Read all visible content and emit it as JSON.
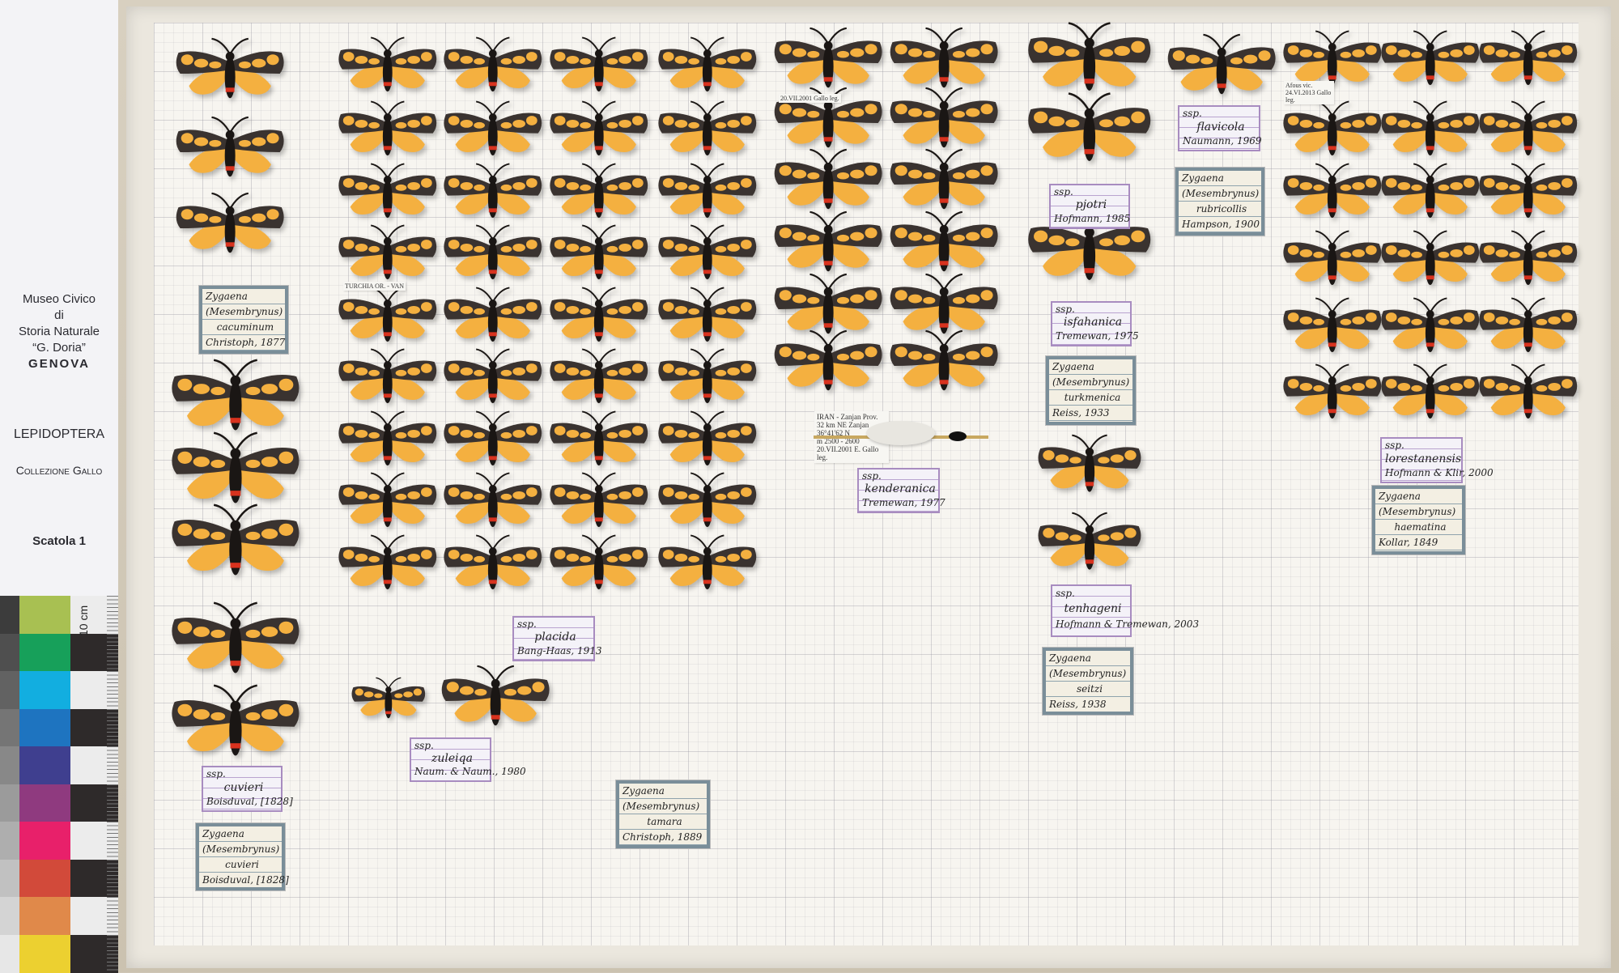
{
  "museum_card": {
    "line1": "Museo Civico",
    "line2": "di",
    "line3": "Storia Naturale",
    "line4": "“G. Doria”",
    "line5": "GENOVA",
    "order": "LEPIDOPTERA",
    "collection": "Collezione Gallo",
    "box": "Scatola 1"
  },
  "scale_bar": {
    "label": "10 cm",
    "color_patches": [
      "#a8c052",
      "#17a05a",
      "#12aee0",
      "#1e74c0",
      "#3f3f8f",
      "#8f3a7f",
      "#e8206a",
      "#d24a3a",
      "#e0894a",
      "#ecd030"
    ]
  },
  "colors": {
    "forewing": "#3a3330",
    "spot": "#f0704a",
    "hindwing": "#f2907c",
    "body": "#1a1614",
    "yellow_spot": "#f4b040",
    "paper": "#f7f5f0"
  },
  "labels": [
    {
      "type": "genus",
      "lines": [
        "Zygaena",
        "(Mesembrynus)",
        "cacuminum",
        "Christoph, 1877"
      ]
    },
    {
      "type": "ssp",
      "lines": [
        "ssp.",
        "cuvieri",
        "Boisduval, [1828]"
      ]
    },
    {
      "type": "genus",
      "lines": [
        "Zygaena",
        "(Mesembrynus)",
        "cuvieri",
        "Boisduval, [1828]"
      ]
    },
    {
      "type": "ssp",
      "lines": [
        "ssp.",
        "placida",
        "Bang-Haas, 1913"
      ]
    },
    {
      "type": "ssp",
      "lines": [
        "ssp.",
        "zuleiqa",
        "Naum. & Naum., 1980"
      ]
    },
    {
      "type": "genus",
      "lines": [
        "Zygaena",
        "(Mesembrynus)",
        "tamara",
        "Christoph, 1889"
      ]
    },
    {
      "type": "ssp",
      "lines": [
        "ssp.",
        "kenderanica",
        "Tremewan, 1977"
      ]
    },
    {
      "type": "ssp",
      "lines": [
        "ssp.",
        "flavicola",
        "Naumann, 1969"
      ]
    },
    {
      "type": "genus",
      "lines": [
        "Zygaena",
        "(Mesembrynus)",
        "rubricollis",
        "Hampson, 1900"
      ]
    },
    {
      "type": "ssp",
      "lines": [
        "ssp.",
        "pjotri",
        "Hofmann, 1985"
      ]
    },
    {
      "type": "ssp",
      "lines": [
        "ssp.",
        "isfahanica",
        "Tremewan, 1975"
      ]
    },
    {
      "type": "genus",
      "lines": [
        "Zygaena",
        "(Mesembrynus)",
        "turkmenica",
        "Reiss, 1933"
      ]
    },
    {
      "type": "ssp",
      "lines": [
        "ssp.",
        "tenhageni",
        "Hofmann & Tremewan, 2003"
      ]
    },
    {
      "type": "genus",
      "lines": [
        "Zygaena",
        "(Mesembrynus)",
        "seitzi",
        "Reiss, 1938"
      ]
    },
    {
      "type": "ssp",
      "lines": [
        "ssp.",
        "lorestanensis",
        "Hofmann & Klir, 2000"
      ]
    },
    {
      "type": "genus",
      "lines": [
        "Zygaena",
        "(Mesembrynus)",
        "haematina",
        "Kollar, 1849"
      ]
    }
  ],
  "data_label": {
    "lines": [
      "IRAN - Zanjan Prov.",
      "32 km NE Zanjan",
      "36°41'62 N",
      "m 2500 - 2600",
      "20.VII.2001  E. Gallo leg."
    ]
  },
  "specimen_tags": {
    "turchia": "TURCHIA OR. - VAN",
    "iran_date": "20.VII.2001  Gallo leg.",
    "afous": "Afous vic. 24.VI.2013  Gallo leg."
  }
}
